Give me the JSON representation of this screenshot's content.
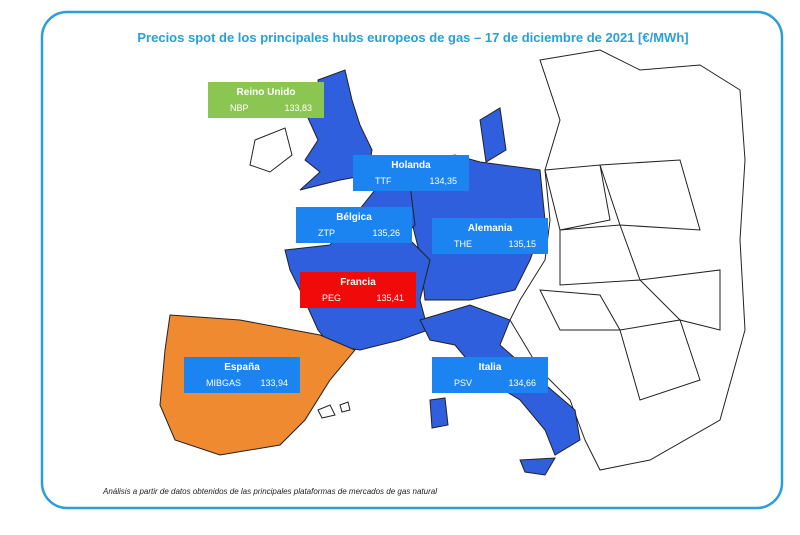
{
  "title": "Precios spot de los principales hubs europeos de gas – 17 de diciembre de 2021 [€/MWh]",
  "hubs": [
    {
      "country": "Reino Unido",
      "hub": "NBP",
      "price": "133,83"
    },
    {
      "country": "Holanda",
      "hub": "TTF",
      "price": "134,35"
    },
    {
      "country": "Bélgica",
      "hub": "ZTP",
      "price": "135,26"
    },
    {
      "country": "Alemania",
      "hub": "THE",
      "price": "135,15"
    },
    {
      "country": "Francia",
      "hub": "PEG",
      "price": "135,41"
    },
    {
      "country": "España",
      "hub": "MIBGAS",
      "price": "133,94"
    },
    {
      "country": "Italia",
      "hub": "PSV",
      "price": "134,66"
    }
  ],
  "footnote": "Análisis a partir de datos obtenidos de las principales plataformas de mercados de gas natural"
}
